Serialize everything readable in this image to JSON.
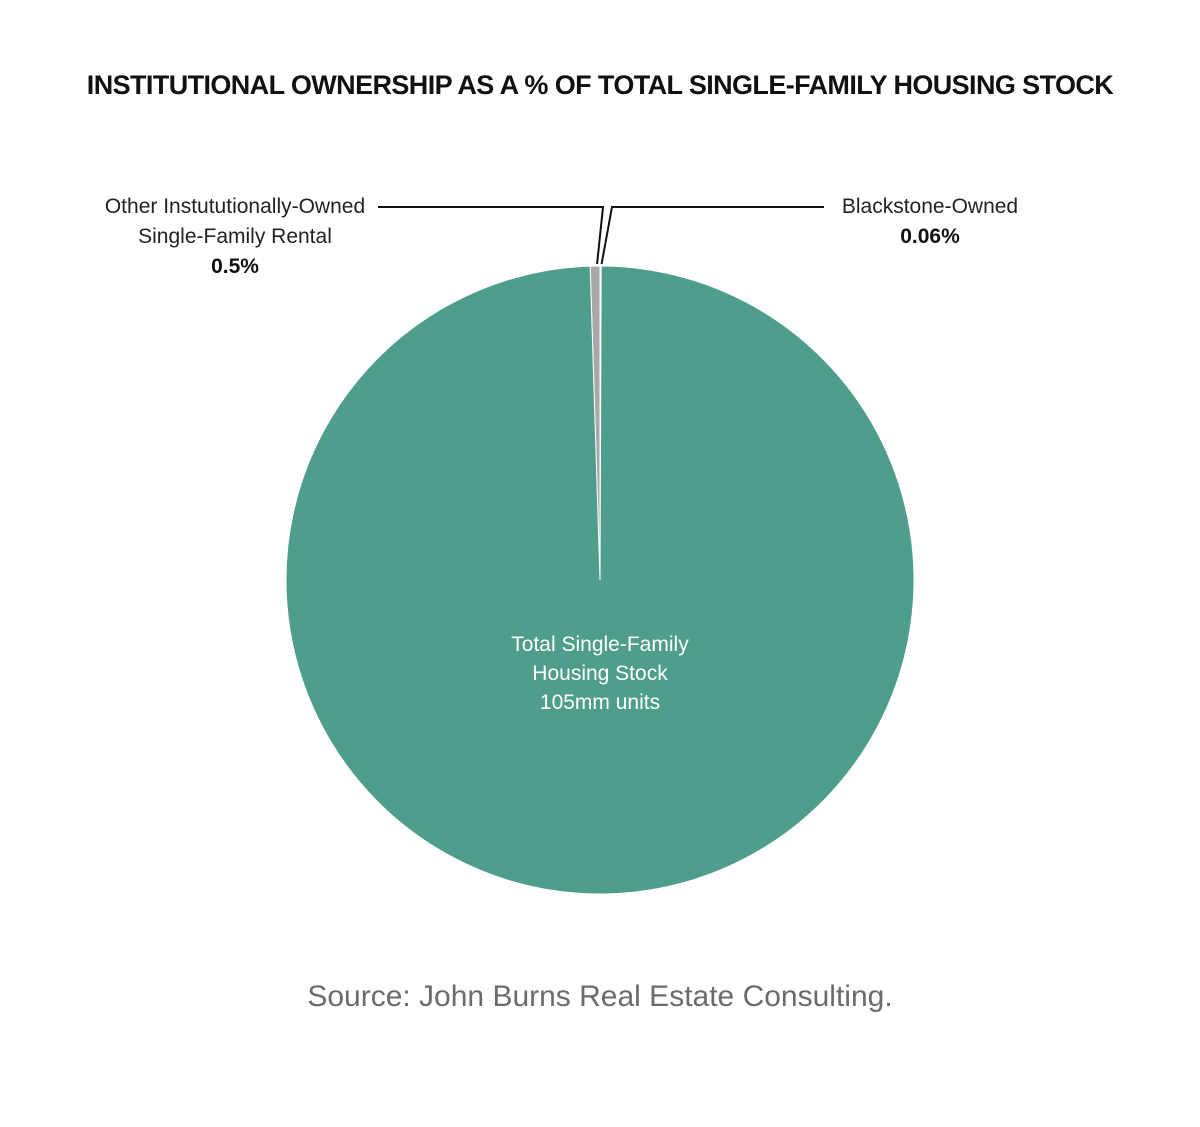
{
  "chart_data": {
    "type": "pie",
    "title": "INSTITUTIONAL OWNERSHIP AS A % OF TOTAL SINGLE-FAMILY HOUSING STOCK",
    "slices": [
      {
        "label_lines": [
          "Total Single-Family",
          "Housing Stock",
          "105mm units"
        ],
        "value": 99.44,
        "color": "#4e9e8b"
      },
      {
        "label_lines": [
          "Other Instututionally-Owned",
          "Single-Family Rental"
        ],
        "value_label": "0.5%",
        "value": 0.5,
        "color": "#a8a8a8"
      },
      {
        "label_lines": [
          "Blackstone-Owned"
        ],
        "value_label": "0.06%",
        "value": 0.06,
        "color": "#1f4e79"
      }
    ],
    "legend": "none",
    "source": "Source: John Burns Real Estate Consulting."
  }
}
